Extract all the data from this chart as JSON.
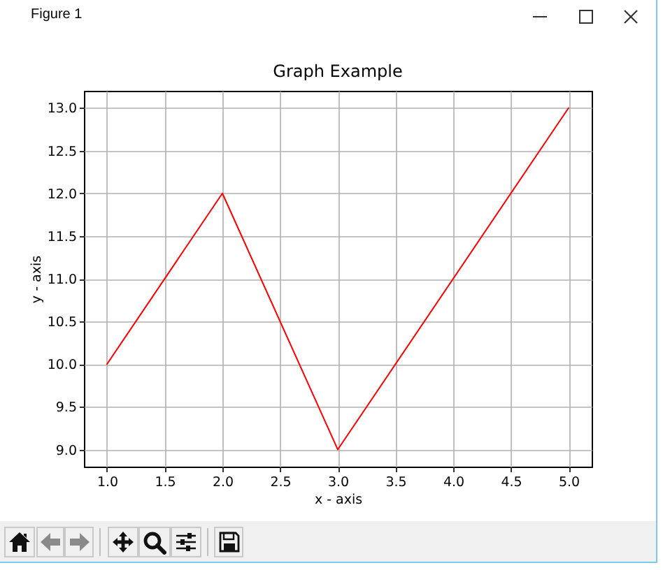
{
  "chart_data": {
    "type": "line",
    "title": "Graph Example",
    "xlabel": "x - axis",
    "ylabel": "y - axis",
    "annotations": [
      "Figure 1"
    ],
    "x": [
      1,
      2,
      3,
      5
    ],
    "series": [
      {
        "color": "#ff0000",
        "values": [
          10,
          12,
          9,
          13
        ]
      }
    ],
    "xlim": [
      0.8,
      5.2
    ],
    "ylim": [
      8.8,
      13.2
    ],
    "xticks": [
      {
        "value": 1,
        "label": "1.0"
      },
      {
        "value": 1.5,
        "label": "1.5"
      },
      {
        "value": 2,
        "label": "2.0"
      },
      {
        "value": 2.5,
        "label": "2.5"
      },
      {
        "value": 3,
        "label": "3.0"
      },
      {
        "value": 3.5,
        "label": "3.5"
      },
      {
        "value": 4,
        "label": "4.0"
      },
      {
        "value": 4.5,
        "label": "4.5"
      },
      {
        "value": 5,
        "label": "5.0"
      }
    ],
    "yticks": [
      {
        "value": 9,
        "label": "9.0"
      },
      {
        "value": 9.5,
        "label": "9.5"
      },
      {
        "value": 10,
        "label": "10.0"
      },
      {
        "value": 10.5,
        "label": "10.5"
      },
      {
        "value": 11,
        "label": "11.0"
      },
      {
        "value": 11.5,
        "label": "11.5"
      },
      {
        "value": 12,
        "label": "12.0"
      },
      {
        "value": 12.5,
        "label": "12.5"
      },
      {
        "value": 13,
        "label": "13.0"
      }
    ],
    "grid": true
  }
}
